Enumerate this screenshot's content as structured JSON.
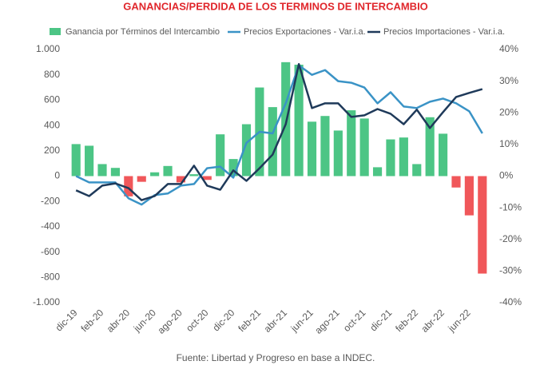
{
  "chart_data": {
    "type": "bar_line",
    "title": "GANANCIAS/PERDIDA DE LOS TERMINOS DE INTERCAMBIO",
    "source": "Fuente: Libertad y Progreso en base a INDEC.",
    "categories": [
      "dic-19",
      null,
      "feb-20",
      null,
      "abr-20",
      null,
      "jun-20",
      null,
      "ago-20",
      null,
      "oct-20",
      null,
      "dic-20",
      null,
      "feb-21",
      null,
      "abr-21",
      null,
      "jun-21",
      null,
      "ago-21",
      null,
      "oct-21",
      null,
      "dic-21",
      null,
      "feb-22",
      null,
      "abr-22",
      null,
      "jun-22",
      null
    ],
    "series": [
      {
        "name": "Ganancia por Términos del Intercambio",
        "type": "bar",
        "color": "#4cc585",
        "negative_color": "#f0575a",
        "values": [
          253,
          240,
          95,
          65,
          -160,
          -45,
          30,
          80,
          -50,
          15,
          -30,
          330,
          135,
          410,
          700,
          545,
          900,
          880,
          430,
          475,
          360,
          520,
          455,
          70,
          290,
          305,
          95,
          465,
          335,
          -90,
          -310,
          -770
        ]
      },
      {
        "name": "Precios Exportaciones - Var.i.a.",
        "type": "line",
        "axis": "y2",
        "color": "#3a93c6",
        "values": [
          0,
          -2,
          -2,
          -2,
          -7,
          -9,
          -6,
          -5.5,
          -3,
          -2.5,
          2.5,
          3,
          -0.5,
          10.5,
          14,
          13.5,
          23,
          35,
          32,
          33.5,
          30,
          29.5,
          28,
          23,
          26.5,
          22,
          21.5,
          23.5,
          24.5,
          23,
          20.5,
          13.5
        ]
      },
      {
        "name": "Precios Importaciones - Var.i.a.",
        "type": "line",
        "axis": "y2",
        "color": "#1f3a5a",
        "values": [
          -4.5,
          -6.3,
          -3,
          -2.3,
          -3.8,
          -7.6,
          -6.3,
          -2.5,
          -2.5,
          3.3,
          -3,
          -4.3,
          1.8,
          -1.5,
          2.5,
          6.8,
          16.4,
          35.4,
          21.5,
          23,
          23,
          18.7,
          19.2,
          21.2,
          19.7,
          16.4,
          21,
          15.2,
          20.2,
          25,
          26.3,
          27.5
        ]
      }
    ],
    "ylim": [
      -1000,
      1000
    ],
    "yticks": [
      {
        "value": -1000,
        "label": "-1.000"
      },
      -800,
      -600,
      -400,
      -200,
      0,
      200,
      400,
      600,
      800,
      {
        "value": 1000,
        "label": "1.000"
      }
    ],
    "y2lim": [
      -40,
      40
    ],
    "y2ticks": [
      {
        "value": -40,
        "label": "-40%"
      },
      {
        "value": -30,
        "label": "-30%"
      },
      {
        "value": -20,
        "label": "-20%"
      },
      {
        "value": -10,
        "label": "-10%"
      },
      {
        "value": 0,
        "label": "0%"
      },
      {
        "value": 10,
        "label": "10%"
      },
      {
        "value": 20,
        "label": "20%"
      },
      {
        "value": 30,
        "label": "30%"
      },
      {
        "value": 40,
        "label": "40%"
      }
    ],
    "grid": false,
    "legend": "top"
  }
}
